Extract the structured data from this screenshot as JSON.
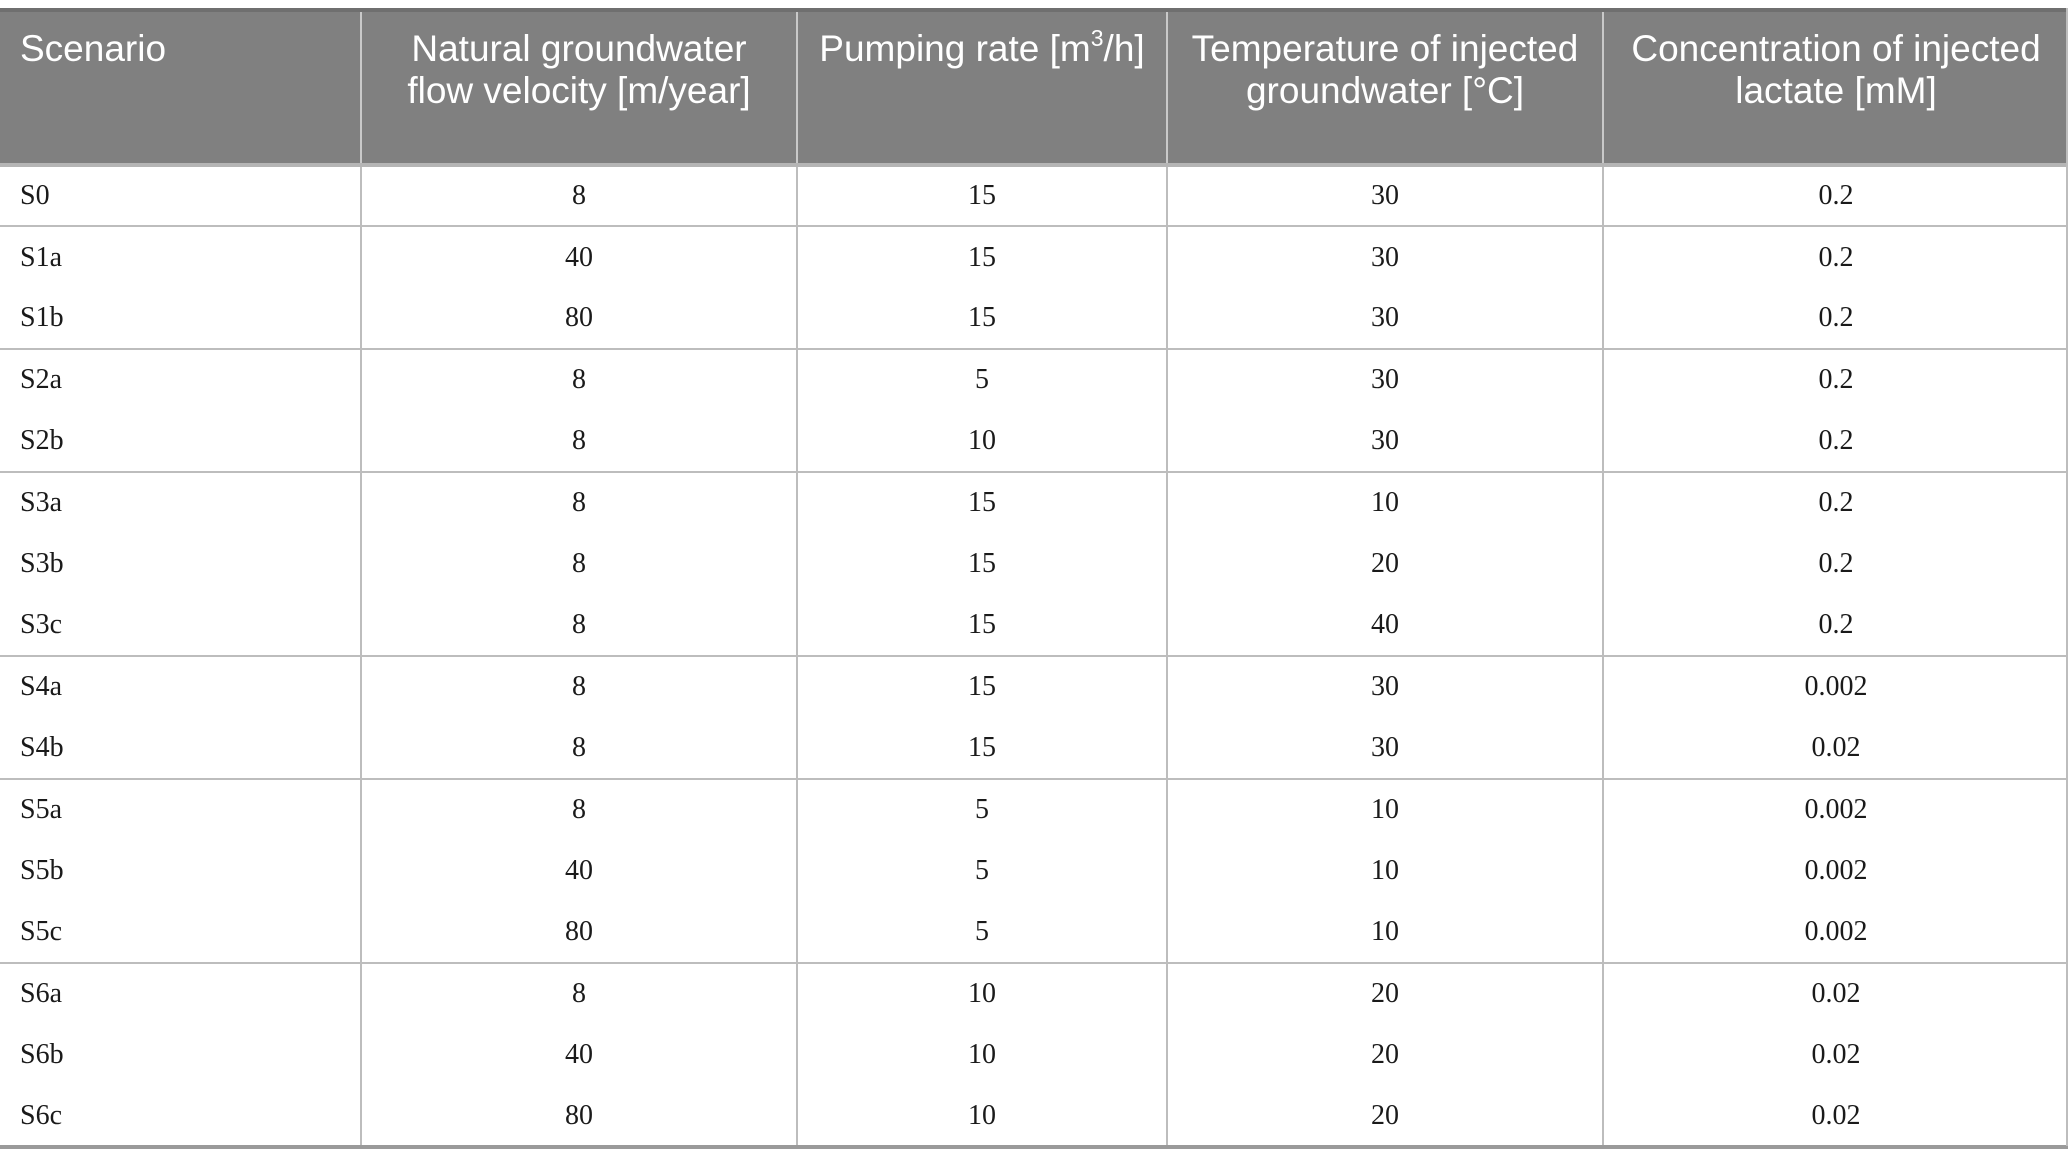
{
  "header": {
    "scenario": "Scenario",
    "velocity": "Natural groundwater flow velocity [m/year]",
    "pumping_pre": "Pumping rate [m",
    "pumping_sup": "3",
    "pumping_post": "/h]",
    "temperature": "Temperature of injected groundwater [°C]",
    "concentration": "Concentration of injected lactate [mM]"
  },
  "rows": [
    [
      "S0",
      "8",
      "15",
      "30",
      "0.2"
    ],
    [
      "S1a",
      "40",
      "15",
      "30",
      "0.2"
    ],
    [
      "S1b",
      "80",
      "15",
      "30",
      "0.2"
    ],
    [
      "S2a",
      "8",
      "5",
      "30",
      "0.2"
    ],
    [
      "S2b",
      "8",
      "10",
      "30",
      "0.2"
    ],
    [
      "S3a",
      "8",
      "15",
      "10",
      "0.2"
    ],
    [
      "S3b",
      "8",
      "15",
      "20",
      "0.2"
    ],
    [
      "S3c",
      "8",
      "15",
      "40",
      "0.2"
    ],
    [
      "S4a",
      "8",
      "15",
      "30",
      "0.002"
    ],
    [
      "S4b",
      "8",
      "15",
      "30",
      "0.02"
    ],
    [
      "S5a",
      "8",
      "5",
      "10",
      "0.002"
    ],
    [
      "S5b",
      "40",
      "5",
      "10",
      "0.002"
    ],
    [
      "S5c",
      "80",
      "5",
      "10",
      "0.002"
    ],
    [
      "S6a",
      "8",
      "10",
      "20",
      "0.02"
    ],
    [
      "S6b",
      "40",
      "10",
      "20",
      "0.02"
    ],
    [
      "S6c",
      "80",
      "10",
      "20",
      "0.02"
    ]
  ]
}
